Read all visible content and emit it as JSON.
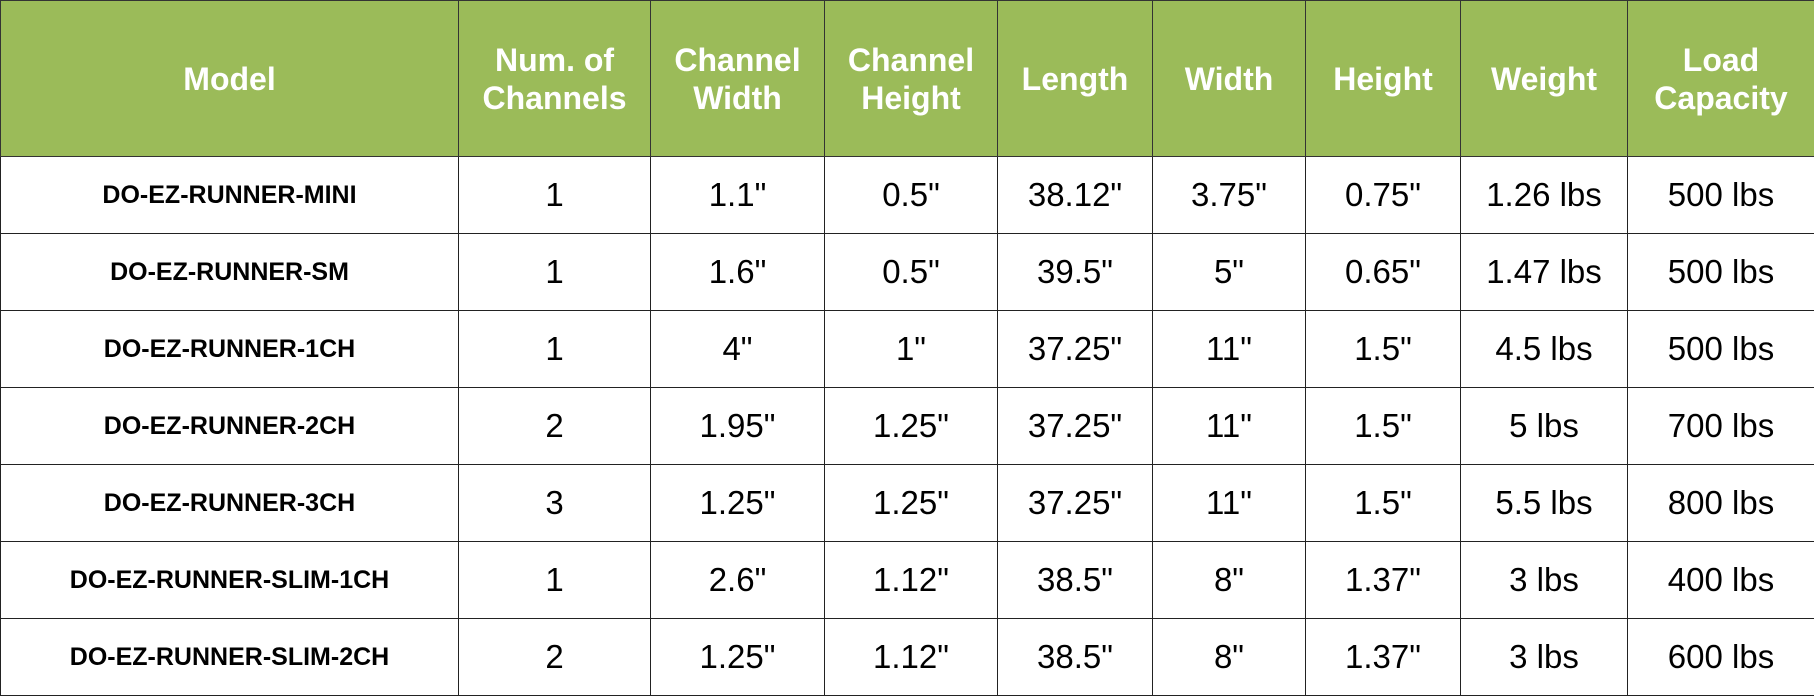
{
  "header_color": "#9BBB59",
  "columns": [
    "Model",
    "Num. of Channels",
    "Channel Width",
    "Channel Height",
    "Length",
    "Width",
    "Height",
    "Weight",
    "Load Capacity"
  ],
  "rows": [
    [
      "DO-EZ-RUNNER-MINI",
      "1",
      "1.1\"",
      "0.5\"",
      "38.12\"",
      "3.75\"",
      "0.75\"",
      "1.26 lbs",
      "500 lbs"
    ],
    [
      "DO-EZ-RUNNER-SM",
      "1",
      "1.6\"",
      "0.5\"",
      "39.5\"",
      "5\"",
      "0.65\"",
      "1.47 lbs",
      "500 lbs"
    ],
    [
      "DO-EZ-RUNNER-1CH",
      "1",
      "4\"",
      "1\"",
      "37.25\"",
      "11\"",
      "1.5\"",
      "4.5 lbs",
      "500 lbs"
    ],
    [
      "DO-EZ-RUNNER-2CH",
      "2",
      "1.95\"",
      "1.25\"",
      "37.25\"",
      "11\"",
      "1.5\"",
      "5 lbs",
      "700 lbs"
    ],
    [
      "DO-EZ-RUNNER-3CH",
      "3",
      "1.25\"",
      "1.25\"",
      "37.25\"",
      "11\"",
      "1.5\"",
      "5.5 lbs",
      "800 lbs"
    ],
    [
      "DO-EZ-RUNNER-SLIM-1CH",
      "1",
      "2.6\"",
      "1.12\"",
      "38.5\"",
      "8\"",
      "1.37\"",
      "3 lbs",
      "400 lbs"
    ],
    [
      "DO-EZ-RUNNER-SLIM-2CH",
      "2",
      "1.25\"",
      "1.12\"",
      "38.5\"",
      "8\"",
      "1.37\"",
      "3 lbs",
      "600 lbs"
    ]
  ]
}
